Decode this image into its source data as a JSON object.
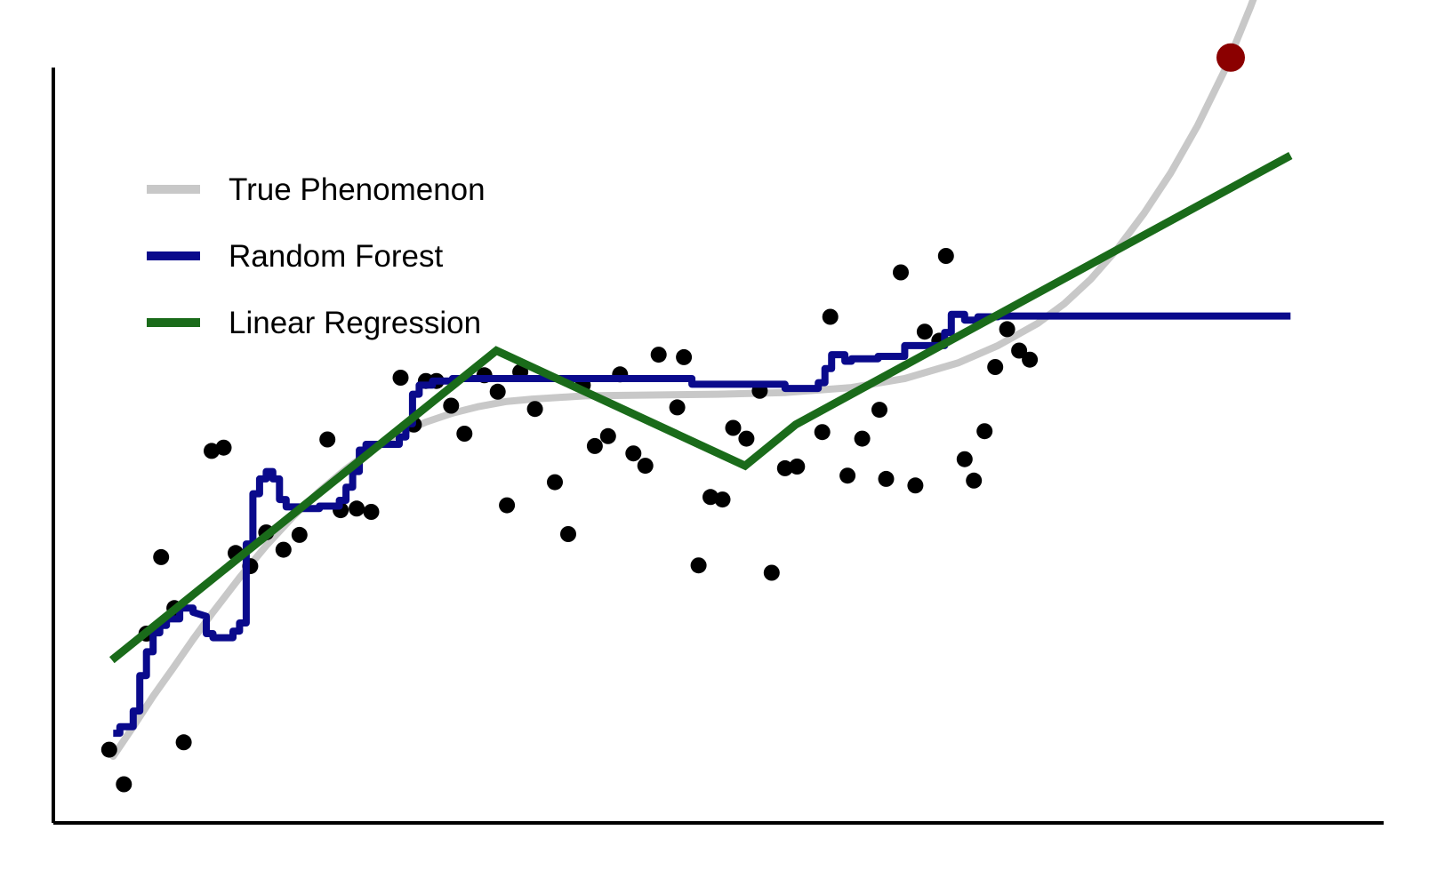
{
  "chart_data": {
    "type": "line",
    "title": "",
    "xlabel": "",
    "ylabel": "",
    "xlim": [
      0,
      1
    ],
    "ylim": [
      0,
      1
    ],
    "grid": false,
    "axes_ticks": false,
    "legend": {
      "placement": "top-left",
      "entries": [
        {
          "name": "True Phenomenon",
          "color": "#c8c8c8"
        },
        {
          "name": "Random Forest",
          "color": "#0a0a8c"
        },
        {
          "name": "Linear Regression",
          "color": "#1a6b1a"
        }
      ]
    },
    "colors": {
      "axis": "#000000",
      "points": "#000000",
      "highlight": "#8b0000"
    },
    "true_phenomenon": {
      "color": "#c8c8c8",
      "points": [
        [
          0.045,
          0.081
        ],
        [
          0.06,
          0.117
        ],
        [
          0.075,
          0.154
        ],
        [
          0.09,
          0.188
        ],
        [
          0.105,
          0.223
        ],
        [
          0.12,
          0.256
        ],
        [
          0.14,
          0.298
        ],
        [
          0.16,
          0.337
        ],
        [
          0.18,
          0.372
        ],
        [
          0.2,
          0.403
        ],
        [
          0.22,
          0.43
        ],
        [
          0.24,
          0.454
        ],
        [
          0.26,
          0.473
        ],
        [
          0.28,
          0.487
        ],
        [
          0.3,
          0.498
        ],
        [
          0.32,
          0.506
        ],
        [
          0.34,
          0.512
        ],
        [
          0.36,
          0.515
        ],
        [
          0.4,
          0.519
        ],
        [
          0.45,
          0.52
        ],
        [
          0.5,
          0.521
        ],
        [
          0.55,
          0.523
        ],
        [
          0.6,
          0.529
        ],
        [
          0.64,
          0.54
        ],
        [
          0.68,
          0.559
        ],
        [
          0.71,
          0.58
        ],
        [
          0.74,
          0.607
        ],
        [
          0.76,
          0.631
        ],
        [
          0.78,
          0.661
        ],
        [
          0.8,
          0.698
        ],
        [
          0.82,
          0.741
        ],
        [
          0.84,
          0.79
        ],
        [
          0.86,
          0.847
        ],
        [
          0.88,
          0.913
        ],
        [
          0.9,
          0.992
        ],
        [
          0.915,
          1.057
        ],
        [
          0.93,
          1.129
        ]
      ]
    },
    "random_forest": {
      "color": "#0a0a8c",
      "points": [
        [
          0.045,
          0.109
        ],
        [
          0.05,
          0.109
        ],
        [
          0.05,
          0.117
        ],
        [
          0.06,
          0.117
        ],
        [
          0.06,
          0.136
        ],
        [
          0.065,
          0.136
        ],
        [
          0.065,
          0.179
        ],
        [
          0.07,
          0.179
        ],
        [
          0.07,
          0.208
        ],
        [
          0.075,
          0.208
        ],
        [
          0.075,
          0.231
        ],
        [
          0.08,
          0.231
        ],
        [
          0.08,
          0.24
        ],
        [
          0.085,
          0.24
        ],
        [
          0.085,
          0.248
        ],
        [
          0.095,
          0.248
        ],
        [
          0.095,
          0.261
        ],
        [
          0.105,
          0.261
        ],
        [
          0.105,
          0.256
        ],
        [
          0.115,
          0.251
        ],
        [
          0.115,
          0.23
        ],
        [
          0.12,
          0.23
        ],
        [
          0.12,
          0.225
        ],
        [
          0.135,
          0.225
        ],
        [
          0.135,
          0.233
        ],
        [
          0.14,
          0.233
        ],
        [
          0.14,
          0.243
        ],
        [
          0.145,
          0.243
        ],
        [
          0.145,
          0.339
        ],
        [
          0.15,
          0.339
        ],
        [
          0.15,
          0.4
        ],
        [
          0.155,
          0.4
        ],
        [
          0.155,
          0.418
        ],
        [
          0.16,
          0.418
        ],
        [
          0.16,
          0.427
        ],
        [
          0.165,
          0.427
        ],
        [
          0.165,
          0.418
        ],
        [
          0.17,
          0.418
        ],
        [
          0.17,
          0.393
        ],
        [
          0.175,
          0.393
        ],
        [
          0.175,
          0.384
        ],
        [
          0.185,
          0.384
        ],
        [
          0.185,
          0.382
        ],
        [
          0.2,
          0.382
        ],
        [
          0.2,
          0.385
        ],
        [
          0.215,
          0.385
        ],
        [
          0.215,
          0.392
        ],
        [
          0.22,
          0.392
        ],
        [
          0.22,
          0.408
        ],
        [
          0.225,
          0.408
        ],
        [
          0.225,
          0.427
        ],
        [
          0.23,
          0.427
        ],
        [
          0.23,
          0.453
        ],
        [
          0.235,
          0.453
        ],
        [
          0.235,
          0.46
        ],
        [
          0.26,
          0.46
        ],
        [
          0.26,
          0.469
        ],
        [
          0.265,
          0.469
        ],
        [
          0.265,
          0.485
        ],
        [
          0.27,
          0.485
        ],
        [
          0.27,
          0.521
        ],
        [
          0.275,
          0.521
        ],
        [
          0.275,
          0.532
        ],
        [
          0.285,
          0.532
        ],
        [
          0.285,
          0.537
        ],
        [
          0.3,
          0.537
        ],
        [
          0.3,
          0.54
        ],
        [
          0.48,
          0.54
        ],
        [
          0.48,
          0.533
        ],
        [
          0.55,
          0.533
        ],
        [
          0.55,
          0.528
        ],
        [
          0.575,
          0.528
        ],
        [
          0.575,
          0.535
        ],
        [
          0.58,
          0.535
        ],
        [
          0.58,
          0.552
        ],
        [
          0.585,
          0.552
        ],
        [
          0.585,
          0.569
        ],
        [
          0.595,
          0.569
        ],
        [
          0.595,
          0.561
        ],
        [
          0.6,
          0.561
        ],
        [
          0.6,
          0.564
        ],
        [
          0.62,
          0.564
        ],
        [
          0.62,
          0.567
        ],
        [
          0.64,
          0.567
        ],
        [
          0.64,
          0.58
        ],
        [
          0.67,
          0.58
        ],
        [
          0.67,
          0.596
        ],
        [
          0.675,
          0.596
        ],
        [
          0.675,
          0.618
        ],
        [
          0.685,
          0.618
        ],
        [
          0.685,
          0.611
        ],
        [
          0.695,
          0.611
        ],
        [
          0.695,
          0.615
        ],
        [
          0.71,
          0.615
        ],
        [
          0.71,
          0.616
        ],
        [
          0.93,
          0.616
        ]
      ]
    },
    "linear_regression": {
      "color": "#1a6b1a",
      "points": [
        [
          0.044,
          0.198
        ],
        [
          0.333,
          0.574
        ],
        [
          0.52,
          0.434
        ],
        [
          0.558,
          0.484
        ],
        [
          0.93,
          0.811
        ]
      ]
    },
    "observations": {
      "color": "#000000",
      "points": [
        [
          0.042,
          0.089
        ],
        [
          0.053,
          0.047
        ],
        [
          0.07,
          0.23
        ],
        [
          0.081,
          0.323
        ],
        [
          0.091,
          0.261
        ],
        [
          0.098,
          0.098
        ],
        [
          0.119,
          0.452
        ],
        [
          0.128,
          0.456
        ],
        [
          0.137,
          0.328
        ],
        [
          0.148,
          0.312
        ],
        [
          0.16,
          0.353
        ],
        [
          0.173,
          0.332
        ],
        [
          0.185,
          0.35
        ],
        [
          0.206,
          0.466
        ],
        [
          0.216,
          0.38
        ],
        [
          0.228,
          0.382
        ],
        [
          0.239,
          0.378
        ],
        [
          0.261,
          0.541
        ],
        [
          0.271,
          0.484
        ],
        [
          0.28,
          0.537
        ],
        [
          0.288,
          0.537
        ],
        [
          0.299,
          0.507
        ],
        [
          0.309,
          0.473
        ],
        [
          0.324,
          0.544
        ],
        [
          0.334,
          0.524
        ],
        [
          0.341,
          0.386
        ],
        [
          0.351,
          0.548
        ],
        [
          0.362,
          0.503
        ],
        [
          0.377,
          0.414
        ],
        [
          0.387,
          0.351
        ],
        [
          0.398,
          0.532
        ],
        [
          0.407,
          0.458
        ],
        [
          0.417,
          0.47
        ],
        [
          0.426,
          0.545
        ],
        [
          0.436,
          0.449
        ],
        [
          0.445,
          0.434
        ],
        [
          0.455,
          0.569
        ],
        [
          0.469,
          0.505
        ],
        [
          0.474,
          0.566
        ],
        [
          0.485,
          0.313
        ],
        [
          0.494,
          0.396
        ],
        [
          0.503,
          0.393
        ],
        [
          0.511,
          0.48
        ],
        [
          0.521,
          0.467
        ],
        [
          0.531,
          0.525
        ],
        [
          0.54,
          0.304
        ],
        [
          0.55,
          0.431
        ],
        [
          0.559,
          0.433
        ],
        [
          0.578,
          0.475
        ],
        [
          0.584,
          0.615
        ],
        [
          0.597,
          0.422
        ],
        [
          0.608,
          0.467
        ],
        [
          0.621,
          0.502
        ],
        [
          0.626,
          0.418
        ],
        [
          0.637,
          0.669
        ],
        [
          0.648,
          0.41
        ],
        [
          0.655,
          0.597
        ],
        [
          0.666,
          0.586
        ],
        [
          0.671,
          0.689
        ],
        [
          0.685,
          0.442
        ],
        [
          0.692,
          0.416
        ],
        [
          0.7,
          0.476
        ],
        [
          0.708,
          0.554
        ],
        [
          0.717,
          0.6
        ],
        [
          0.726,
          0.574
        ],
        [
          0.734,
          0.563
        ]
      ]
    },
    "highlight_point": {
      "color": "#8b0000",
      "points": [
        [
          0.885,
          0.93
        ]
      ]
    }
  }
}
